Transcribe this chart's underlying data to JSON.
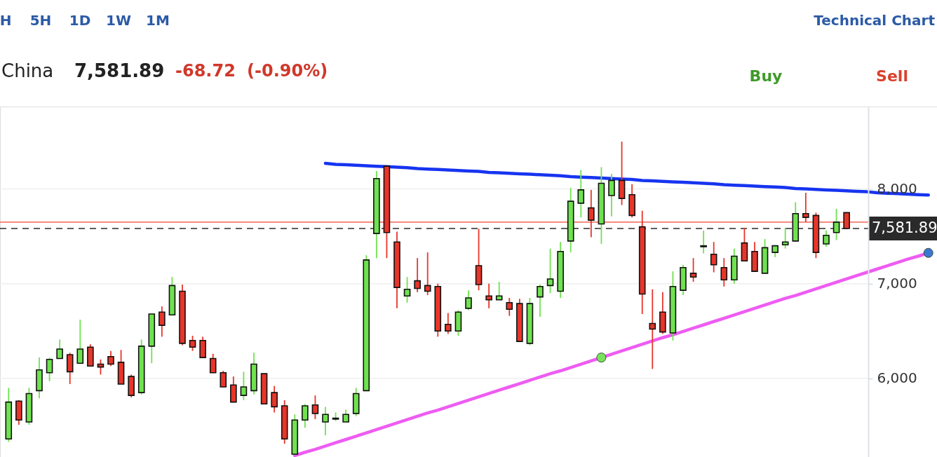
{
  "chart_data": {
    "type": "candlestick",
    "title": "China",
    "annotations": [
      "H",
      "5H",
      "1D",
      "1W",
      "1M",
      "Technical Chart",
      "7,581.89",
      "-68.72",
      "(-0.90%)",
      "Buy",
      "Sell"
    ],
    "categories": [
      null,
      null,
      null,
      null,
      null,
      null,
      null,
      null,
      null,
      null,
      null,
      null,
      null,
      null,
      null,
      null,
      null,
      null,
      null,
      null,
      null,
      null,
      null,
      null,
      null,
      null,
      null,
      null,
      null,
      null,
      null,
      null,
      null,
      null,
      null,
      null,
      null,
      null,
      null,
      null,
      null,
      null,
      null,
      null,
      null,
      null,
      null,
      null,
      null,
      null,
      null,
      null,
      null,
      null,
      null,
      null,
      null,
      null,
      null,
      null,
      null,
      null,
      null,
      null,
      null,
      null,
      null,
      null,
      null,
      null,
      null,
      null,
      null,
      null,
      null,
      null,
      null,
      null,
      null,
      null,
      null,
      null,
      null,
      null,
      null,
      null,
      null,
      null,
      null,
      null,
      null
    ],
    "ohlc": [
      [
        5360,
        5900,
        5330,
        5750
      ],
      [
        5760,
        5770,
        5510,
        5560
      ],
      [
        5540,
        5900,
        5510,
        5840
      ],
      [
        5870,
        6220,
        5790,
        6090
      ],
      [
        6060,
        6220,
        5970,
        6200
      ],
      [
        6210,
        6410,
        6210,
        6310
      ],
      [
        6250,
        6270,
        5940,
        6070
      ],
      [
        6160,
        6620,
        6160,
        6310
      ],
      [
        6330,
        6360,
        6130,
        6130
      ],
      [
        6150,
        6200,
        6040,
        6120
      ],
      [
        6230,
        6290,
        6130,
        6150
      ],
      [
        6170,
        6300,
        5940,
        5940
      ],
      [
        6020,
        6040,
        5800,
        5820
      ],
      [
        5850,
        6410,
        5830,
        6340
      ],
      [
        6340,
        6680,
        6160,
        6680
      ],
      [
        6700,
        6760,
        6440,
        6560
      ],
      [
        6670,
        7070,
        6670,
        6980
      ],
      [
        6920,
        6990,
        6350,
        6370
      ],
      [
        6400,
        6450,
        6290,
        6330
      ],
      [
        6400,
        6440,
        6220,
        6220
      ],
      [
        6210,
        6260,
        6060,
        6060
      ],
      [
        6060,
        6080,
        5910,
        5910
      ],
      [
        5930,
        6020,
        5750,
        5750
      ],
      [
        5820,
        6070,
        5770,
        5910
      ],
      [
        5870,
        6270,
        5830,
        6150
      ],
      [
        6050,
        6050,
        5730,
        5730
      ],
      [
        5850,
        5920,
        5640,
        5700
      ],
      [
        5710,
        5770,
        5310,
        5360
      ],
      [
        5200,
        5620,
        5190,
        5560
      ],
      [
        5560,
        5730,
        5480,
        5710
      ],
      [
        5720,
        5820,
        5570,
        5630
      ],
      [
        5540,
        5700,
        5400,
        5620
      ],
      [
        5570,
        5640,
        5550,
        5580
      ],
      [
        5540,
        5670,
        5540,
        5620
      ],
      [
        5630,
        5900,
        5600,
        5840
      ],
      [
        5870,
        7300,
        5870,
        7250
      ],
      [
        7530,
        8190,
        7270,
        8110
      ],
      [
        8240,
        8240,
        7270,
        7540
      ],
      [
        7440,
        7550,
        6740,
        6960
      ],
      [
        6870,
        7070,
        6800,
        6940
      ],
      [
        7030,
        7270,
        6910,
        6950
      ],
      [
        6980,
        7330,
        6880,
        6920
      ],
      [
        6970,
        7000,
        6440,
        6500
      ],
      [
        6570,
        6690,
        6470,
        6500
      ],
      [
        6500,
        6720,
        6450,
        6700
      ],
      [
        6740,
        6930,
        6720,
        6850
      ],
      [
        7190,
        7580,
        6930,
        6990
      ],
      [
        6870,
        7000,
        6740,
        6830
      ],
      [
        6830,
        7020,
        6830,
        6870
      ],
      [
        6800,
        6850,
        6660,
        6730
      ],
      [
        6790,
        6840,
        6390,
        6390
      ],
      [
        6370,
        6850,
        6350,
        6790
      ],
      [
        6860,
        6990,
        6650,
        6970
      ],
      [
        6980,
        7370,
        6900,
        7050
      ],
      [
        6920,
        7440,
        6850,
        7340
      ],
      [
        7450,
        8010,
        7330,
        7870
      ],
      [
        7850,
        8200,
        7700,
        7990
      ],
      [
        7800,
        7990,
        7490,
        7670
      ],
      [
        7630,
        8230,
        7420,
        8060
      ],
      [
        7930,
        8160,
        7710,
        8090
      ],
      [
        8090,
        8500,
        7830,
        7900
      ],
      [
        7940,
        8050,
        7700,
        7720
      ],
      [
        7600,
        7770,
        6680,
        6890
      ],
      [
        6580,
        6940,
        6100,
        6520
      ],
      [
        6700,
        6910,
        6470,
        6490
      ],
      [
        6480,
        7130,
        6400,
        6970
      ],
      [
        6930,
        7200,
        6880,
        7170
      ],
      [
        7110,
        7270,
        7020,
        7070
      ],
      [
        7390,
        7560,
        7320,
        7400
      ],
      [
        7310,
        7440,
        7120,
        7200
      ],
      [
        7170,
        7270,
        6970,
        7040
      ],
      [
        7040,
        7370,
        7000,
        7290
      ],
      [
        7430,
        7590,
        7240,
        7240
      ],
      [
        7340,
        7440,
        7130,
        7130
      ],
      [
        7110,
        7470,
        7110,
        7380
      ],
      [
        7330,
        7400,
        7280,
        7400
      ],
      [
        7410,
        7590,
        7370,
        7440
      ],
      [
        7450,
        7860,
        7450,
        7740
      ],
      [
        7740,
        7960,
        7650,
        7700
      ],
      [
        7720,
        7750,
        7270,
        7330
      ],
      [
        7420,
        7560,
        7390,
        7510
      ],
      [
        7540,
        7790,
        7460,
        7650
      ],
      [
        7750,
        7750,
        7581.89,
        7581.89
      ],
      null,
      null,
      null,
      null,
      null,
      null,
      null,
      null
    ],
    "colors": [
      "#6fe24f",
      "#e8352a",
      "#6fe24f",
      "#6fe24f",
      "#6fe24f",
      "#6fe24f",
      "#e8352a",
      "#6fe24f",
      "#e8352a",
      "#e8352a",
      "#e8352a",
      "#e8352a",
      "#e8352a",
      "#6fe24f",
      "#6fe24f",
      "#e8352a",
      "#6fe24f",
      "#e8352a",
      "#e8352a",
      "#e8352a",
      "#e8352a",
      "#e8352a",
      "#e8352a",
      "#6fe24f",
      "#6fe24f",
      "#e8352a",
      "#e8352a",
      "#e8352a",
      "#6fe24f",
      "#6fe24f",
      "#e8352a",
      "#6fe24f",
      "#6fe24f",
      "#6fe24f",
      "#6fe24f",
      "#6fe24f",
      "#6fe24f",
      "#e8352a",
      "#e8352a",
      "#6fe24f",
      "#e8352a",
      "#e8352a",
      "#e8352a",
      "#e8352a",
      "#6fe24f",
      "#6fe24f",
      "#e8352a",
      "#e8352a",
      "#6fe24f",
      "#e8352a",
      "#e8352a",
      "#6fe24f",
      "#6fe24f",
      "#6fe24f",
      "#6fe24f",
      "#6fe24f",
      "#6fe24f",
      "#e8352a",
      "#6fe24f",
      "#6fe24f",
      "#e8352a",
      "#e8352a",
      "#e8352a",
      "#e8352a",
      "#e8352a",
      "#6fe24f",
      "#6fe24f",
      "#e8352a",
      "#6fe24f",
      "#e8352a",
      "#e8352a",
      "#6fe24f",
      "#e8352a",
      "#e8352a",
      "#6fe24f",
      "#6fe24f",
      "#6fe24f",
      "#6fe24f",
      "#e8352a",
      "#e8352a",
      "#6fe24f",
      "#6fe24f",
      "#e8352a",
      null,
      null,
      null,
      null,
      null,
      null,
      null,
      null
    ],
    "series": [
      {
        "type": "line",
        "color": "#1634f0",
        "values": [
          null,
          null,
          null,
          null,
          null,
          null,
          null,
          null,
          null,
          null,
          null,
          null,
          null,
          null,
          null,
          null,
          null,
          null,
          null,
          null,
          null,
          null,
          null,
          null,
          null,
          null,
          null,
          null,
          null,
          null,
          null,
          8270,
          8260,
          8255,
          8250,
          8245,
          8240,
          8235,
          8230,
          8225,
          8215,
          8210,
          8205,
          8200,
          8195,
          8190,
          8185,
          8175,
          8170,
          8165,
          8160,
          8155,
          8150,
          8145,
          8140,
          8130,
          8125,
          8120,
          8115,
          8110,
          8105,
          8100,
          8090,
          8085,
          8080,
          8075,
          8070,
          8065,
          8060,
          8055,
          8045,
          8040,
          8035,
          8030,
          8025,
          8020,
          8015,
          8005,
          8000,
          7995,
          7990,
          7985,
          7980,
          7975,
          7970,
          7960,
          7955,
          7950,
          7945,
          7940,
          7935
        ]
      },
      {
        "type": "line",
        "color": "#ee5cf2",
        "values": [
          null,
          null,
          null,
          null,
          null,
          null,
          null,
          null,
          null,
          null,
          null,
          null,
          null,
          null,
          null,
          null,
          null,
          null,
          null,
          null,
          null,
          null,
          null,
          null,
          null,
          null,
          null,
          null,
          5185,
          5220,
          5250,
          5285,
          5320,
          5355,
          5390,
          5425,
          5460,
          5495,
          5530,
          5565,
          5600,
          5635,
          5665,
          5700,
          5735,
          5770,
          5805,
          5840,
          5875,
          5910,
          5945,
          5980,
          6015,
          6050,
          6080,
          6115,
          6150,
          6185,
          6220,
          6255,
          6290,
          6325,
          6360,
          6395,
          6430,
          6460,
          6495,
          6530,
          6565,
          6600,
          6635,
          6670,
          6705,
          6740,
          6775,
          6810,
          6845,
          6875,
          6910,
          6945,
          6980,
          7015,
          7050,
          7085,
          7120,
          7155,
          7190,
          7225,
          7260,
          7290,
          7325
        ]
      },
      {
        "type": "scatter",
        "color": "#78e35a",
        "values": [
          null,
          null,
          null,
          null,
          null,
          null,
          null,
          null,
          null,
          null,
          null,
          null,
          null,
          null,
          null,
          null,
          null,
          null,
          null,
          null,
          null,
          null,
          null,
          null,
          null,
          null,
          null,
          null,
          null,
          null,
          null,
          null,
          null,
          null,
          null,
          null,
          null,
          null,
          null,
          null,
          null,
          null,
          null,
          null,
          null,
          null,
          null,
          null,
          null,
          null,
          null,
          null,
          null,
          null,
          null,
          null,
          null,
          null,
          6220,
          null,
          null,
          null,
          null,
          null,
          null,
          null,
          null,
          null,
          null,
          null,
          null,
          null,
          null,
          null,
          null,
          null,
          null,
          null,
          null,
          null,
          null,
          null,
          null,
          null,
          null,
          null,
          null,
          null,
          null,
          null,
          null
        ]
      },
      {
        "type": "scatter",
        "color": "#3a78d0",
        "values": [
          null,
          null,
          null,
          null,
          null,
          null,
          null,
          null,
          null,
          null,
          null,
          null,
          null,
          null,
          null,
          null,
          null,
          null,
          null,
          null,
          null,
          null,
          null,
          null,
          null,
          null,
          null,
          null,
          null,
          null,
          null,
          null,
          null,
          null,
          null,
          null,
          null,
          null,
          null,
          null,
          null,
          null,
          null,
          null,
          null,
          null,
          null,
          null,
          null,
          null,
          null,
          null,
          null,
          null,
          null,
          null,
          null,
          null,
          null,
          null,
          null,
          null,
          null,
          null,
          null,
          null,
          null,
          null,
          null,
          null,
          null,
          null,
          null,
          null,
          null,
          null,
          null,
          null,
          null,
          null,
          null,
          null,
          null,
          null,
          null,
          null,
          null,
          null,
          null,
          null,
          7325
        ]
      }
    ],
    "ref_lines": [
      {
        "axis": "y",
        "value": 7650,
        "color": "#f47b6e",
        "line_style": "solid"
      },
      {
        "axis": "y",
        "value": 7581.89,
        "label": "7,581.89",
        "color": "#2a2a2a",
        "line_style": "dashed"
      }
    ],
    "ylim": [
      5170,
      8870
    ],
    "yticks": [
      {
        "value": 6000,
        "label": "6,000"
      },
      {
        "value": 7000,
        "label": "7,000"
      },
      {
        "value": 8000,
        "label": "8,000"
      }
    ],
    "grid": "y"
  }
}
